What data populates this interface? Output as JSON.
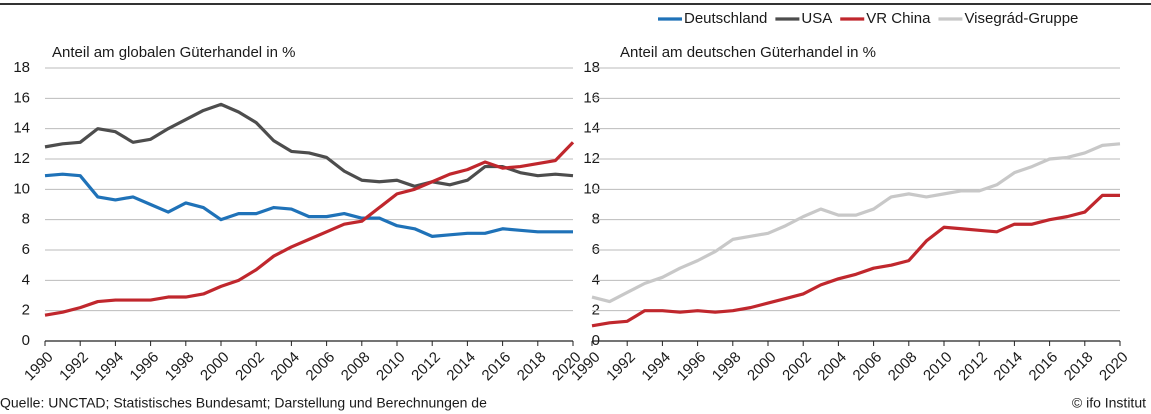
{
  "chart_data": [
    {
      "type": "line",
      "title": "Anteil am globalen Güterhandel in %",
      "x": [
        1990,
        1991,
        1992,
        1993,
        1994,
        1995,
        1996,
        1997,
        1998,
        1999,
        2000,
        2001,
        2002,
        2003,
        2004,
        2005,
        2006,
        2007,
        2008,
        2009,
        2010,
        2011,
        2012,
        2013,
        2014,
        2015,
        2016,
        2017,
        2018,
        2019,
        2020
      ],
      "xlim": [
        1990,
        2020
      ],
      "xticks": [
        1990,
        1992,
        1994,
        1996,
        1998,
        2000,
        2002,
        2004,
        2006,
        2008,
        2010,
        2012,
        2014,
        2016,
        2018,
        2020
      ],
      "ylim": [
        0,
        18
      ],
      "yticks": [
        0,
        2,
        4,
        6,
        8,
        10,
        12,
        14,
        16,
        18
      ],
      "grid": true,
      "series": [
        {
          "name": "Deutschland",
          "color": "#1f72b8",
          "values": [
            10.9,
            11.0,
            10.9,
            9.5,
            9.3,
            9.5,
            9.0,
            8.5,
            9.1,
            8.8,
            8.0,
            8.4,
            8.4,
            8.8,
            8.7,
            8.2,
            8.2,
            8.4,
            8.1,
            8.1,
            7.6,
            7.4,
            6.9,
            7.0,
            7.1,
            7.1,
            7.4,
            7.3,
            7.2,
            7.2,
            7.2
          ]
        },
        {
          "name": "USA",
          "color": "#4d4d4d",
          "values": [
            12.8,
            13.0,
            13.1,
            14.0,
            13.8,
            13.1,
            13.3,
            14.0,
            14.6,
            15.2,
            15.6,
            15.1,
            14.4,
            13.2,
            12.5,
            12.4,
            12.1,
            11.2,
            10.6,
            10.5,
            10.6,
            10.2,
            10.5,
            10.3,
            10.6,
            11.5,
            11.5,
            11.1,
            10.9,
            11.0,
            10.9
          ]
        },
        {
          "name": "VR China",
          "color": "#c0272d",
          "values": [
            1.7,
            1.9,
            2.2,
            2.6,
            2.7,
            2.7,
            2.7,
            2.9,
            2.9,
            3.1,
            3.6,
            4.0,
            4.7,
            5.6,
            6.2,
            6.7,
            7.2,
            7.7,
            7.9,
            8.8,
            9.7,
            10.0,
            10.5,
            11.0,
            11.3,
            11.8,
            11.4,
            11.5,
            11.7,
            11.9,
            13.1
          ]
        }
      ]
    },
    {
      "type": "line",
      "title": "Anteil am deutschen Güterhandel in %",
      "x": [
        1990,
        1991,
        1992,
        1993,
        1994,
        1995,
        1996,
        1997,
        1998,
        1999,
        2000,
        2001,
        2002,
        2003,
        2004,
        2005,
        2006,
        2007,
        2008,
        2009,
        2010,
        2011,
        2012,
        2013,
        2014,
        2015,
        2016,
        2017,
        2018,
        2019,
        2020
      ],
      "xlim": [
        1990,
        2020
      ],
      "xticks": [
        1990,
        1992,
        1994,
        1996,
        1998,
        2000,
        2002,
        2004,
        2006,
        2008,
        2010,
        2012,
        2014,
        2016,
        2018,
        2020
      ],
      "ylim": [
        0,
        18
      ],
      "yticks": [
        0,
        2,
        4,
        6,
        8,
        10,
        12,
        14,
        16,
        18
      ],
      "grid": true,
      "series": [
        {
          "name": "VR China",
          "color": "#c0272d",
          "values": [
            1.0,
            1.2,
            1.3,
            2.0,
            2.0,
            1.9,
            2.0,
            1.9,
            2.0,
            2.2,
            2.5,
            2.8,
            3.1,
            3.7,
            4.1,
            4.4,
            4.8,
            5.0,
            5.3,
            6.6,
            7.5,
            7.4,
            7.3,
            7.2,
            7.7,
            7.7,
            8.0,
            8.2,
            8.5,
            9.6,
            9.6
          ]
        },
        {
          "name": "Visegrád-Gruppe",
          "color": "#c8c8c8",
          "values": [
            2.9,
            2.6,
            3.2,
            3.8,
            4.2,
            4.8,
            5.3,
            5.9,
            6.7,
            6.9,
            7.1,
            7.6,
            8.2,
            8.7,
            8.3,
            8.3,
            8.7,
            9.5,
            9.7,
            9.5,
            9.7,
            9.9,
            9.9,
            10.3,
            11.1,
            11.5,
            12.0,
            12.1,
            12.4,
            12.9,
            13.0
          ]
        }
      ]
    }
  ],
  "source": "Quelle: UNCTAD; Statistisches Bundesamt; Darstellung und Berechnungen de",
  "credit": "© ifo Institut"
}
